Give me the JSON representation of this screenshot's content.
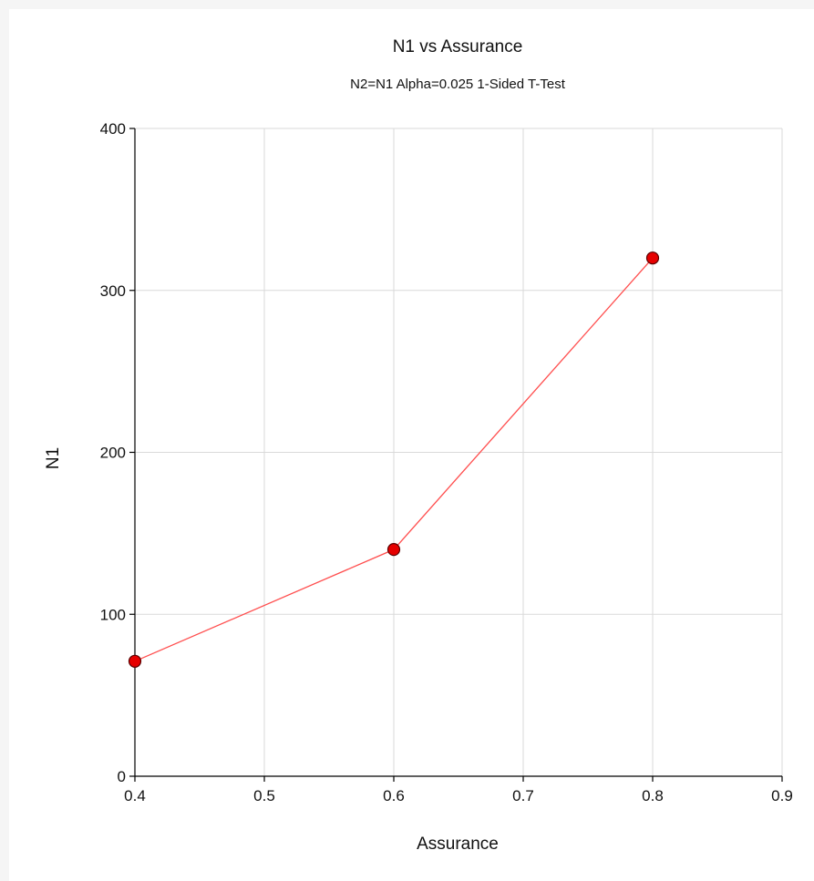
{
  "chart_data": {
    "type": "line",
    "title": "N1 vs Assurance",
    "subtitle": "N2=N1 Alpha=0.025 1-Sided T-Test",
    "xlabel": "Assurance",
    "ylabel": "N1",
    "xlim": [
      0.4,
      0.9
    ],
    "ylim": [
      0,
      400
    ],
    "xticks": [
      "0.4",
      "0.5",
      "0.6",
      "0.7",
      "0.8",
      "0.9"
    ],
    "yticks": [
      "0",
      "100",
      "200",
      "300",
      "400"
    ],
    "grid": true,
    "series": [
      {
        "x": [
          0.4,
          0.6,
          0.8
        ],
        "y": [
          71,
          140,
          320
        ],
        "line_color": "#ff4d4d",
        "marker_fill": "#e60000",
        "marker_stroke": "#5a0000"
      }
    ]
  }
}
